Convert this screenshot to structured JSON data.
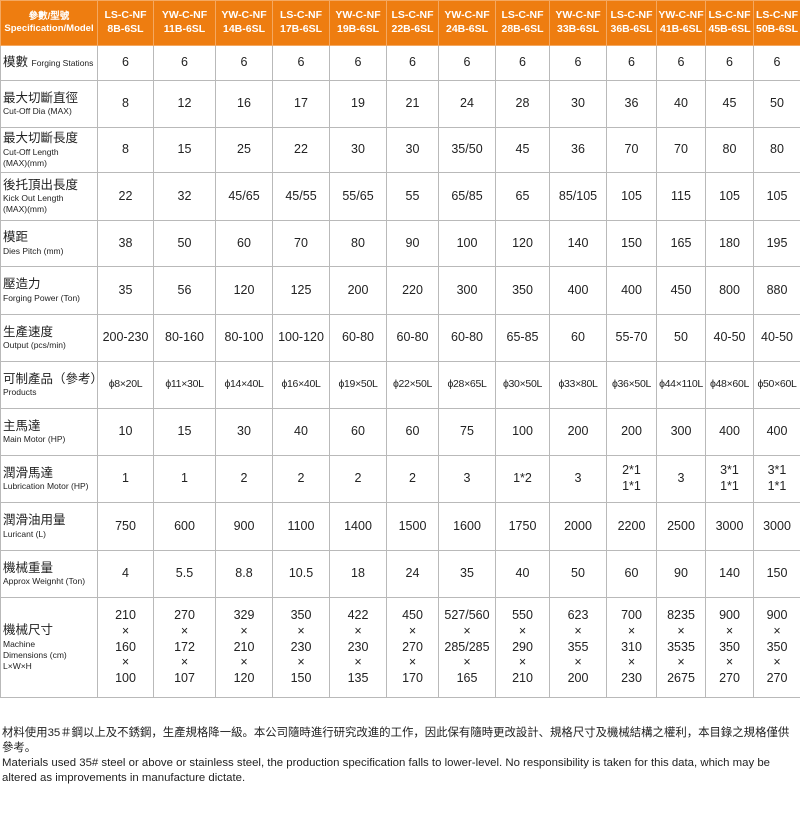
{
  "header": {
    "spec_label": "參數/型號\nSpecification/Model",
    "models": [
      "LS-C-NF\n8B-6SL",
      "YW-C-NF\n11B-6SL",
      "YW-C-NF\n14B-6SL",
      "LS-C-NF\n17B-6SL",
      "YW-C-NF\n19B-6SL",
      "LS-C-NF\n22B-6SL",
      "YW-C-NF\n24B-6SL",
      "LS-C-NF\n28B-6SL",
      "YW-C-NF\n33B-6SL",
      "LS-C-NF\n36B-6SL",
      "YW-C-NF\n41B-6SL",
      "LS-C-NF\n45B-6SL",
      "LS-C-NF\n50B-6SL"
    ]
  },
  "rows": [
    {
      "zh": "模數",
      "en": "Forging Stations",
      "inline": true,
      "values": [
        "6",
        "6",
        "6",
        "6",
        "6",
        "6",
        "6",
        "6",
        "6",
        "6",
        "6",
        "6",
        "6"
      ]
    },
    {
      "zh": "最大切斷直徑",
      "en": "Cut-Off Dia (MAX)",
      "values": [
        "8",
        "12",
        "16",
        "17",
        "19",
        "21",
        "24",
        "28",
        "30",
        "36",
        "40",
        "45",
        "50"
      ]
    },
    {
      "zh": "最大切斷長度",
      "en": "Cut-Off Length\n(MAX)(mm)",
      "values": [
        "8",
        "15",
        "25",
        "22",
        "30",
        "30",
        "35/50",
        "45",
        "36",
        "70",
        "70",
        "80",
        "80"
      ]
    },
    {
      "zh": "後托頂出長度",
      "en": "Kick Out Length\n(MAX)(mm)",
      "values": [
        "22",
        "32",
        "45/65",
        "45/55",
        "55/65",
        "55",
        "65/85",
        "65",
        "85/105",
        "105",
        "115",
        "105",
        "105"
      ]
    },
    {
      "zh": "模距",
      "en": "Dies Pitch  (mm)",
      "values": [
        "38",
        "50",
        "60",
        "70",
        "80",
        "90",
        "100",
        "120",
        "140",
        "150",
        "165",
        "180",
        "195"
      ]
    },
    {
      "zh": "壓造力",
      "en": "Forging Power (Ton)",
      "values": [
        "35",
        "56",
        "120",
        "125",
        "200",
        "220",
        "300",
        "350",
        "400",
        "400",
        "450",
        "800",
        "880"
      ]
    },
    {
      "zh": "生產速度",
      "en": "Output  (pcs/min)",
      "values": [
        "200-230",
        "80-160",
        "80-100",
        "100-120",
        "60-80",
        "60-80",
        "60-80",
        "65-85",
        "60",
        "55-70",
        "50",
        "40-50",
        "40-50"
      ]
    },
    {
      "zh": "可制產品（參考）",
      "en": "Products",
      "small": true,
      "values": [
        "ϕ8×20L",
        "ϕ11×30L",
        "ϕ14×40L",
        "ϕ16×40L",
        "ϕ19×50L",
        "ϕ22×50L",
        "ϕ28×65L",
        "ϕ30×50L",
        "ϕ33×80L",
        "ϕ36×50L",
        "ϕ44×110L",
        "ϕ48×60L",
        "ϕ50×60L"
      ]
    },
    {
      "zh": "主馬達",
      "en": "Main Motor  (HP)",
      "values": [
        "10",
        "15",
        "30",
        "40",
        "60",
        "60",
        "75",
        "100",
        "200",
        "200",
        "300",
        "400",
        "400"
      ]
    },
    {
      "zh": "潤滑馬達",
      "en": "Lubrication Motor (HP)",
      "values": [
        "1",
        "1",
        "2",
        "2",
        "2",
        "2",
        "3",
        "1*2",
        "3",
        "2*1\n1*1",
        "3",
        "3*1\n1*1",
        "3*1\n1*1"
      ]
    },
    {
      "zh": "潤滑油用量",
      "en": "Luricant (L)",
      "values": [
        "750",
        "600",
        "900",
        "1100",
        "1400",
        "1500",
        "1600",
        "1750",
        "2000",
        "2200",
        "2500",
        "3000",
        "3000"
      ]
    },
    {
      "zh": "機械重量",
      "en": "Approx Weignht (Ton)",
      "values": [
        "4",
        "5.5",
        "8.8",
        "10.5",
        "18",
        "24",
        "35",
        "40",
        "50",
        "60",
        "90",
        "140",
        "150"
      ]
    },
    {
      "zh": "機械尺寸",
      "en": "Machine\nDimensions (cm)\nL×W×H",
      "values": [
        "210\n×\n160\n×\n100",
        "270\n×\n172\n×\n107",
        "329\n×\n210\n×\n120",
        "350\n×\n230\n×\n150",
        "422\n×\n230\n×\n135",
        "450\n×\n270\n×\n170",
        "527/560\n×\n285/285\n×\n165",
        "550\n×\n290\n×\n210",
        "623\n×\n355\n×\n200",
        "700\n×\n310\n×\n230",
        "8235\n×\n3535\n×\n2675",
        "900\n×\n350\n×\n270",
        "900\n×\n350\n×\n270"
      ]
    }
  ],
  "footer": {
    "zh": "材料使用35＃鋼以上及不銹鋼，生產規格降一級。本公司隨時進行研究改進的工作，因此保有隨時更改設計、規格尺寸及機械結構之權利，本目錄之規格僅供參考。",
    "en": "Materials used 35# steel or above or stainless steel, the production specification falls to lower-level. No responsibility is taken for this data, which may be altered as improvements in manufacture dictate."
  },
  "colors": {
    "header_bg": "#ee7d10",
    "grid": "#b9b9b9"
  }
}
